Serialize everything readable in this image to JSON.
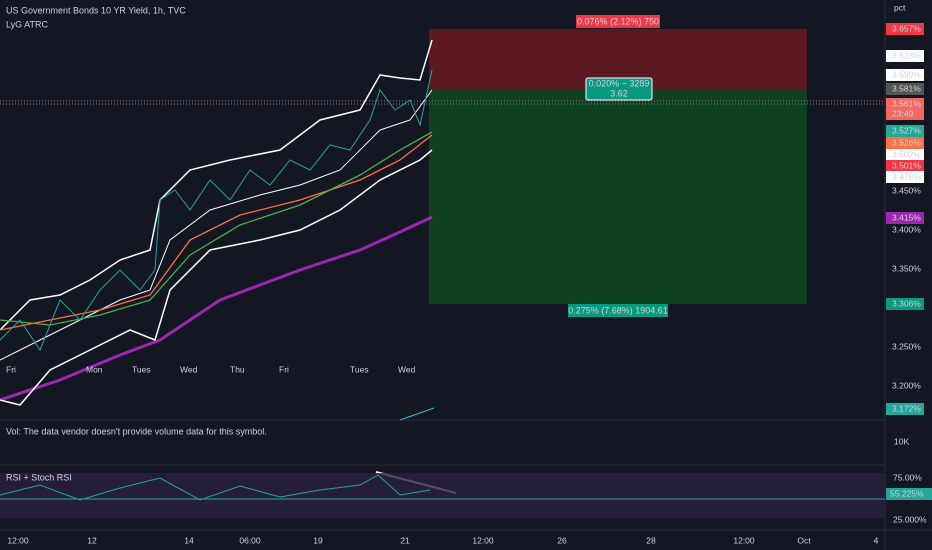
{
  "header": {
    "title": "US Government Bonds 10 YR Yield, 1h, TVC",
    "indicator": "LyG ATRC"
  },
  "price_axis": {
    "unit": "pct",
    "labels": [
      "3.657%",
      "3.623%",
      "3.599%",
      "3.581%",
      "3.561%",
      "23:49",
      "3.527%",
      "3.526%",
      "3.502%",
      "3.501%",
      "3.478%",
      "3.450%",
      "3.415%",
      "3.400%",
      "3.350%",
      "3.306%",
      "3.250%",
      "3.200%",
      "3.172%"
    ]
  },
  "position": {
    "stop": "0.076% (2.12%) 750",
    "entry": "0.020% − 3289",
    "entry_price": "3.62",
    "target": "0.275% (7.68%) 1904.61"
  },
  "day_labels": [
    "Fri",
    "Mon",
    "Tues",
    "Wed",
    "Thu",
    "Fri",
    "Tues",
    "Wed"
  ],
  "volume": {
    "note": "Vol: The data vendor doesn't provide volume data for this symbol.",
    "axis": "10K"
  },
  "rsi": {
    "title": "RSI + Stoch RSI",
    "labels": [
      "75.00%",
      "55.225%",
      "25.000%"
    ]
  },
  "time_axis": [
    "12:00",
    "12",
    "14",
    "06:00",
    "19",
    "21",
    "12:00",
    "26",
    "28",
    "12:00",
    "Oct",
    "4"
  ]
}
